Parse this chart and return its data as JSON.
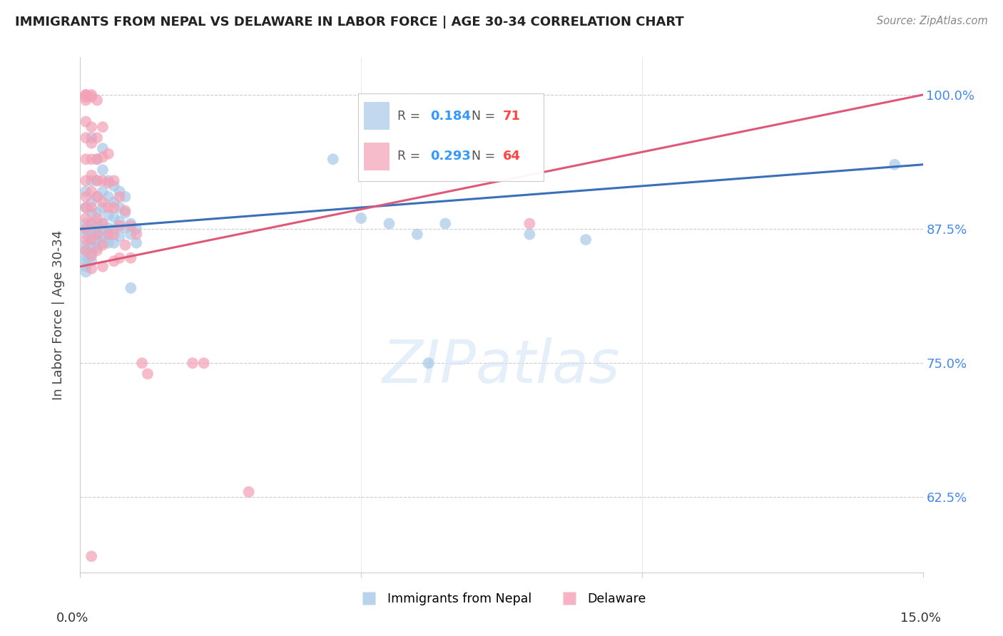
{
  "title": "IMMIGRANTS FROM NEPAL VS DELAWARE IN LABOR FORCE | AGE 30-34 CORRELATION CHART",
  "source": "Source: ZipAtlas.com",
  "ylabel": "In Labor Force | Age 30-34",
  "xlim": [
    0.0,
    0.15
  ],
  "ylim": [
    0.555,
    1.035
  ],
  "yticks": [
    0.625,
    0.75,
    0.875,
    1.0
  ],
  "ytick_labels": [
    "62.5%",
    "75.0%",
    "87.5%",
    "100.0%"
  ],
  "legend1_label": "Immigrants from Nepal",
  "legend2_label": "Delaware",
  "r1": 0.184,
  "n1": 71,
  "r2": 0.293,
  "n2": 64,
  "blue_color": "#a8c8e8",
  "pink_color": "#f4a0b5",
  "blue_line_color": "#3a6fba",
  "pink_line_color": "#e05878",
  "blue_line_x0": 0.0,
  "blue_line_y0": 0.875,
  "blue_line_x1": 0.15,
  "blue_line_y1": 0.935,
  "pink_line_x0": 0.0,
  "pink_line_y0": 0.84,
  "pink_line_x1": 0.15,
  "pink_line_y1": 1.0,
  "blue_scatter": [
    [
      0.001,
      0.91
    ],
    [
      0.001,
      0.895
    ],
    [
      0.001,
      0.88
    ],
    [
      0.001,
      0.875
    ],
    [
      0.001,
      0.87
    ],
    [
      0.001,
      0.86
    ],
    [
      0.001,
      0.855
    ],
    [
      0.001,
      0.85
    ],
    [
      0.001,
      0.845
    ],
    [
      0.001,
      0.84
    ],
    [
      0.001,
      0.835
    ],
    [
      0.002,
      0.96
    ],
    [
      0.002,
      0.92
    ],
    [
      0.002,
      0.9
    ],
    [
      0.002,
      0.89
    ],
    [
      0.002,
      0.88
    ],
    [
      0.002,
      0.875
    ],
    [
      0.002,
      0.87
    ],
    [
      0.002,
      0.865
    ],
    [
      0.002,
      0.858
    ],
    [
      0.002,
      0.852
    ],
    [
      0.002,
      0.845
    ],
    [
      0.003,
      0.94
    ],
    [
      0.003,
      0.92
    ],
    [
      0.003,
      0.905
    ],
    [
      0.003,
      0.89
    ],
    [
      0.003,
      0.88
    ],
    [
      0.003,
      0.875
    ],
    [
      0.003,
      0.87
    ],
    [
      0.003,
      0.865
    ],
    [
      0.003,
      0.858
    ],
    [
      0.004,
      0.95
    ],
    [
      0.004,
      0.93
    ],
    [
      0.004,
      0.91
    ],
    [
      0.004,
      0.895
    ],
    [
      0.004,
      0.88
    ],
    [
      0.004,
      0.875
    ],
    [
      0.004,
      0.868
    ],
    [
      0.004,
      0.862
    ],
    [
      0.005,
      0.92
    ],
    [
      0.005,
      0.905
    ],
    [
      0.005,
      0.888
    ],
    [
      0.005,
      0.876
    ],
    [
      0.005,
      0.87
    ],
    [
      0.005,
      0.862
    ],
    [
      0.006,
      0.915
    ],
    [
      0.006,
      0.9
    ],
    [
      0.006,
      0.886
    ],
    [
      0.006,
      0.875
    ],
    [
      0.006,
      0.862
    ],
    [
      0.007,
      0.91
    ],
    [
      0.007,
      0.895
    ],
    [
      0.007,
      0.882
    ],
    [
      0.007,
      0.868
    ],
    [
      0.008,
      0.905
    ],
    [
      0.008,
      0.89
    ],
    [
      0.008,
      0.876
    ],
    [
      0.009,
      0.88
    ],
    [
      0.009,
      0.87
    ],
    [
      0.009,
      0.82
    ],
    [
      0.01,
      0.875
    ],
    [
      0.01,
      0.862
    ],
    [
      0.045,
      0.94
    ],
    [
      0.05,
      0.885
    ],
    [
      0.055,
      0.88
    ],
    [
      0.06,
      0.87
    ],
    [
      0.062,
      0.75
    ],
    [
      0.065,
      0.88
    ],
    [
      0.08,
      0.87
    ],
    [
      0.09,
      0.865
    ],
    [
      0.145,
      0.935
    ]
  ],
  "pink_scatter": [
    [
      0.001,
      1.0
    ],
    [
      0.001,
      1.0
    ],
    [
      0.001,
      0.998
    ],
    [
      0.001,
      0.995
    ],
    [
      0.001,
      0.975
    ],
    [
      0.001,
      0.96
    ],
    [
      0.001,
      0.94
    ],
    [
      0.001,
      0.92
    ],
    [
      0.001,
      0.905
    ],
    [
      0.001,
      0.895
    ],
    [
      0.001,
      0.885
    ],
    [
      0.001,
      0.875
    ],
    [
      0.001,
      0.865
    ],
    [
      0.001,
      0.855
    ],
    [
      0.002,
      1.0
    ],
    [
      0.002,
      0.998
    ],
    [
      0.002,
      0.97
    ],
    [
      0.002,
      0.955
    ],
    [
      0.002,
      0.94
    ],
    [
      0.002,
      0.925
    ],
    [
      0.002,
      0.91
    ],
    [
      0.002,
      0.895
    ],
    [
      0.002,
      0.88
    ],
    [
      0.002,
      0.865
    ],
    [
      0.002,
      0.85
    ],
    [
      0.002,
      0.838
    ],
    [
      0.003,
      0.995
    ],
    [
      0.003,
      0.96
    ],
    [
      0.003,
      0.94
    ],
    [
      0.003,
      0.92
    ],
    [
      0.003,
      0.905
    ],
    [
      0.003,
      0.885
    ],
    [
      0.003,
      0.87
    ],
    [
      0.003,
      0.855
    ],
    [
      0.004,
      0.97
    ],
    [
      0.004,
      0.942
    ],
    [
      0.004,
      0.92
    ],
    [
      0.004,
      0.9
    ],
    [
      0.004,
      0.88
    ],
    [
      0.004,
      0.86
    ],
    [
      0.004,
      0.84
    ],
    [
      0.005,
      0.945
    ],
    [
      0.005,
      0.918
    ],
    [
      0.005,
      0.895
    ],
    [
      0.005,
      0.87
    ],
    [
      0.006,
      0.92
    ],
    [
      0.006,
      0.895
    ],
    [
      0.006,
      0.87
    ],
    [
      0.006,
      0.845
    ],
    [
      0.007,
      0.905
    ],
    [
      0.007,
      0.878
    ],
    [
      0.007,
      0.848
    ],
    [
      0.008,
      0.892
    ],
    [
      0.008,
      0.86
    ],
    [
      0.009,
      0.878
    ],
    [
      0.009,
      0.848
    ],
    [
      0.01,
      0.87
    ],
    [
      0.011,
      0.75
    ],
    [
      0.012,
      0.74
    ],
    [
      0.02,
      0.75
    ],
    [
      0.022,
      0.75
    ],
    [
      0.03,
      0.63
    ],
    [
      0.002,
      0.57
    ],
    [
      0.08,
      0.88
    ]
  ]
}
